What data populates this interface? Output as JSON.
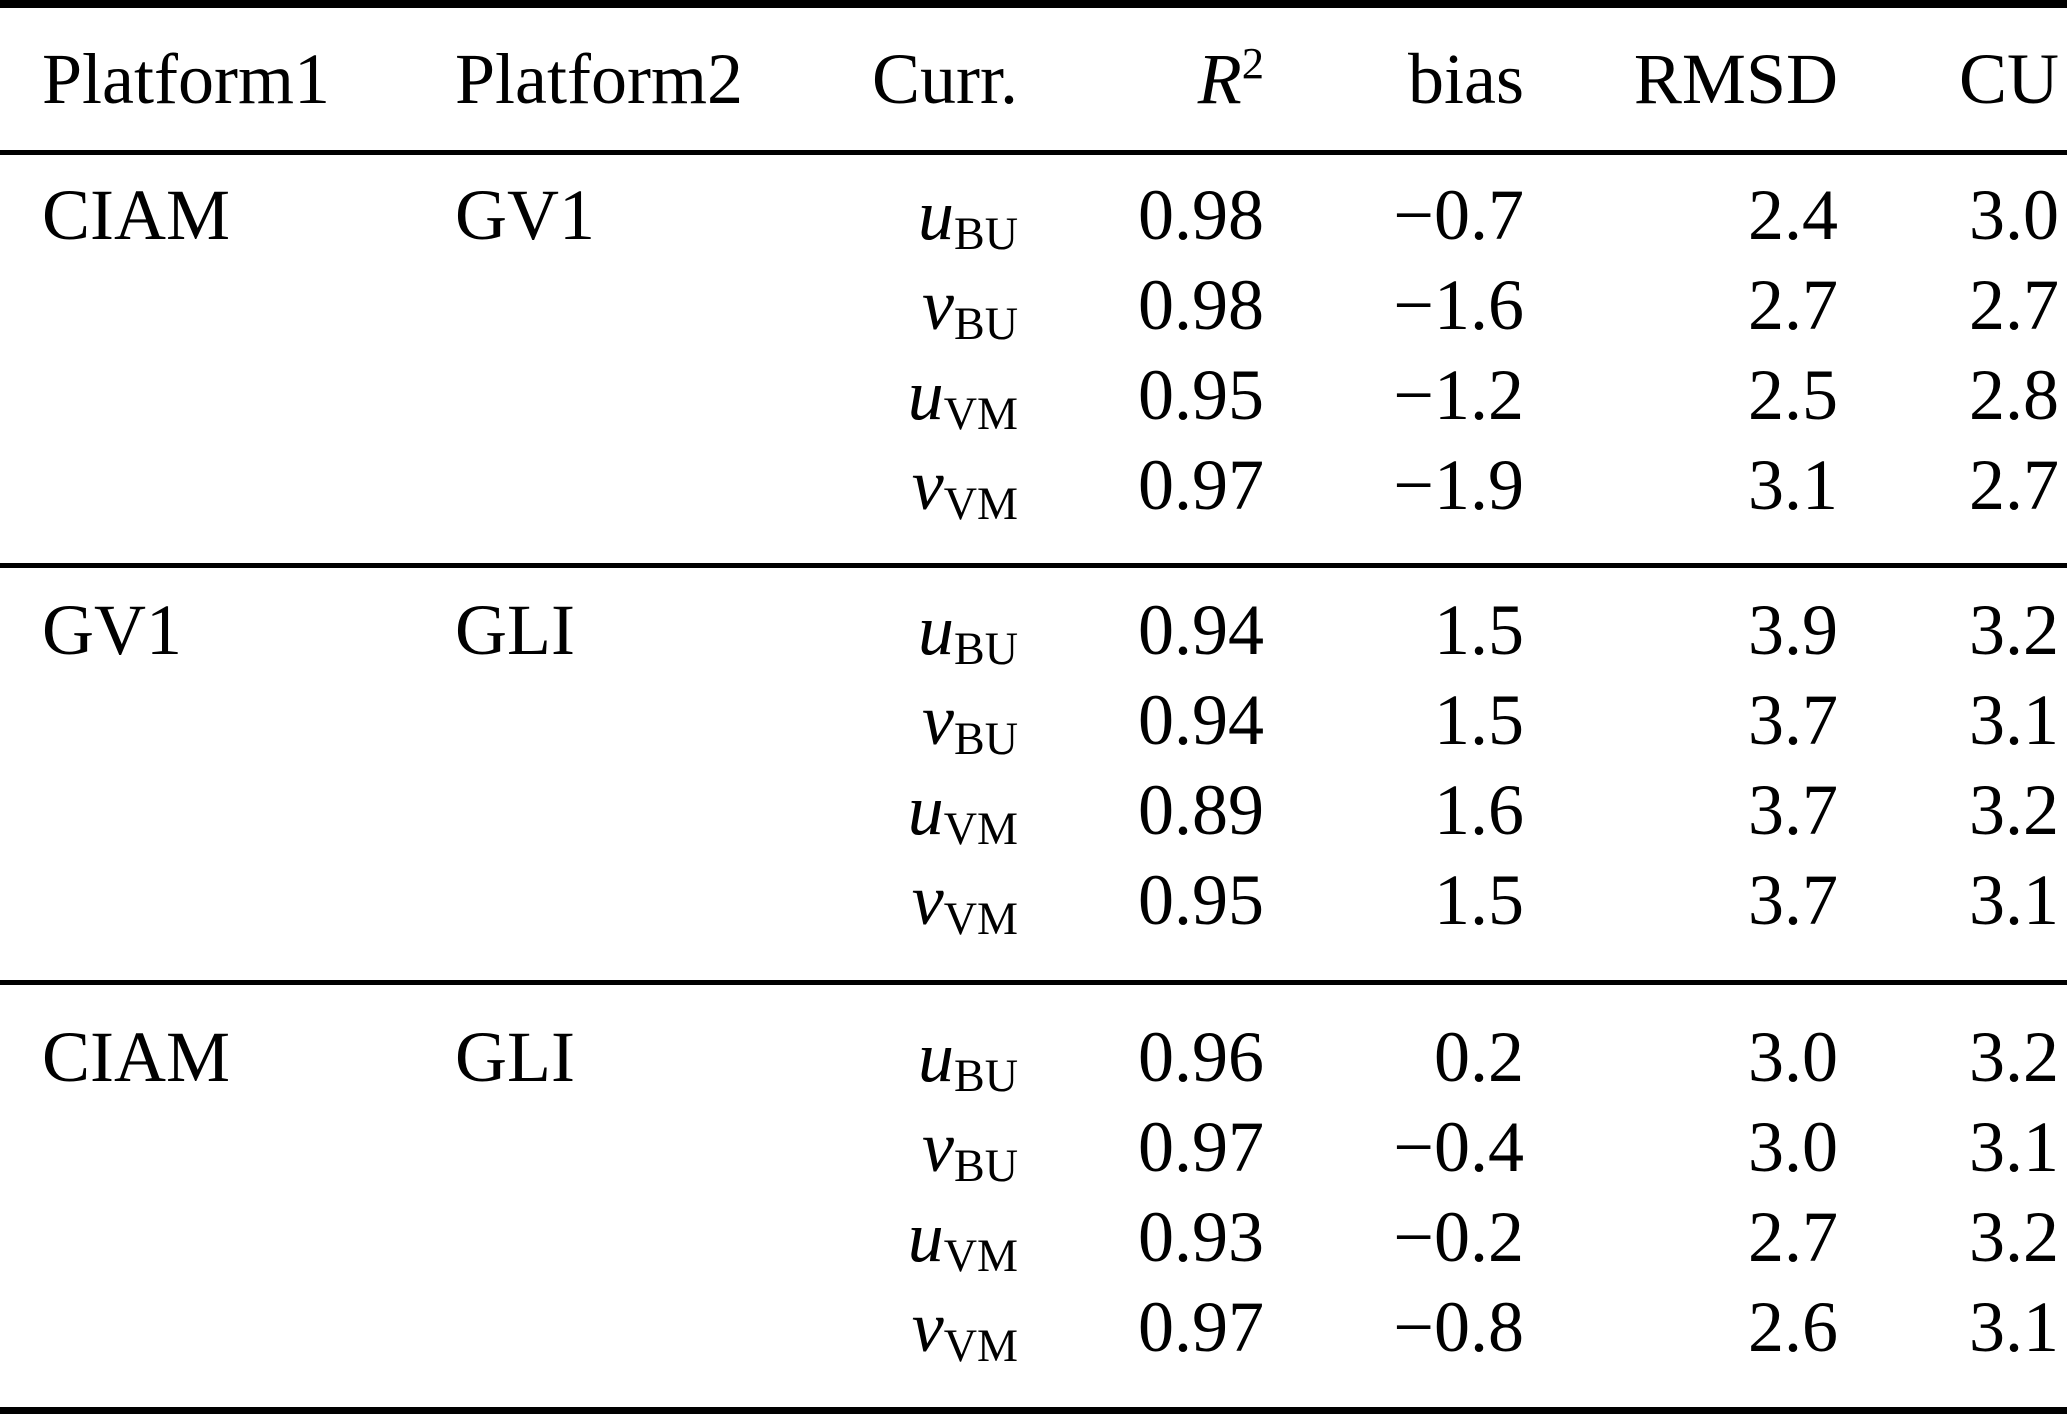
{
  "table": {
    "headers": {
      "platform1": "Platform1",
      "platform2": "Platform2",
      "curr": "Curr.",
      "r2_base": "R",
      "r2_sup": "2",
      "bias": "bias",
      "rmsd": "RMSD",
      "cu": "CU"
    },
    "groups": [
      {
        "platform1": "CIAM",
        "platform2": "GV1",
        "rows": [
          {
            "var": "u",
            "sub": "BU",
            "r2": "0.98",
            "bias": "−0.7",
            "rmsd": "2.4",
            "cu": "3.0"
          },
          {
            "var": "v",
            "sub": "BU",
            "r2": "0.98",
            "bias": "−1.6",
            "rmsd": "2.7",
            "cu": "2.7"
          },
          {
            "var": "u",
            "sub": "VM",
            "r2": "0.95",
            "bias": "−1.2",
            "rmsd": "2.5",
            "cu": "2.8"
          },
          {
            "var": "v",
            "sub": "VM",
            "r2": "0.97",
            "bias": "−1.9",
            "rmsd": "3.1",
            "cu": "2.7"
          }
        ]
      },
      {
        "platform1": "GV1",
        "platform2": "GLI",
        "rows": [
          {
            "var": "u",
            "sub": "BU",
            "r2": "0.94",
            "bias": "1.5",
            "rmsd": "3.9",
            "cu": "3.2"
          },
          {
            "var": "v",
            "sub": "BU",
            "r2": "0.94",
            "bias": "1.5",
            "rmsd": "3.7",
            "cu": "3.1"
          },
          {
            "var": "u",
            "sub": "VM",
            "r2": "0.89",
            "bias": "1.6",
            "rmsd": "3.7",
            "cu": "3.2"
          },
          {
            "var": "v",
            "sub": "VM",
            "r2": "0.95",
            "bias": "1.5",
            "rmsd": "3.7",
            "cu": "3.1"
          }
        ]
      },
      {
        "platform1": "CIAM",
        "platform2": "GLI",
        "rows": [
          {
            "var": "u",
            "sub": "BU",
            "r2": "0.96",
            "bias": "0.2",
            "rmsd": "3.0",
            "cu": "3.2"
          },
          {
            "var": "v",
            "sub": "BU",
            "r2": "0.97",
            "bias": "−0.4",
            "rmsd": "3.0",
            "cu": "3.1"
          },
          {
            "var": "u",
            "sub": "VM",
            "r2": "0.93",
            "bias": "−0.2",
            "rmsd": "2.7",
            "cu": "3.2"
          },
          {
            "var": "v",
            "sub": "VM",
            "r2": "0.97",
            "bias": "−0.8",
            "rmsd": "2.6",
            "cu": "3.1"
          }
        ]
      }
    ]
  }
}
